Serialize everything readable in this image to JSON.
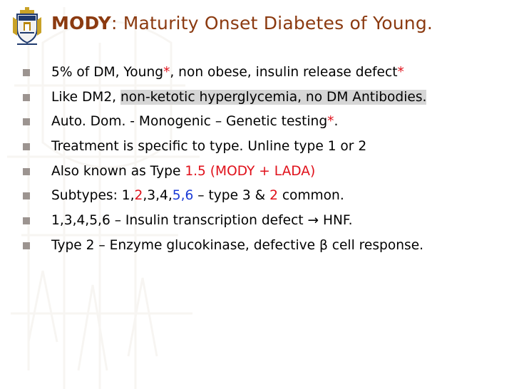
{
  "colors": {
    "title": "#8b3a10",
    "accent_red": "#e0101a",
    "accent_blue": "#1a3ad6",
    "bullet": "#9c9490",
    "highlight": "#d6d6d6"
  },
  "logo": {
    "icon": "university-crest-icon"
  },
  "title": {
    "bold": "MODY",
    "rest": ": Maturity Onset Diabetes of Young."
  },
  "bullets": [
    {
      "a": "5% of DM, Young",
      "b": "*",
      "c": ", non obese, insulin release defect",
      "d": "*"
    },
    {
      "a": "Like DM2, ",
      "b": "non-ketotic hyperglycemia, no DM Antibodies."
    },
    {
      "a": "Auto. Dom. - Monogenic – Genetic testing",
      "b": "*",
      "c": "."
    },
    {
      "a": "Treatment is specific to type. Unline type 1 or 2"
    },
    {
      "a": "Also known as Type ",
      "b": "1.5 (MODY + LADA)"
    },
    {
      "a": "Subtypes: 1,",
      "b": "2",
      "c": ",3,4,",
      "d": "5,6",
      "e": " – type 3 & ",
      "f": "2",
      "g": " common."
    },
    {
      "a": "1,3,4,5,6 – Insulin transcription defect ",
      "arrow": "→",
      "b": " HNF."
    },
    {
      "a": "Type 2 – Enzyme glucokinase, defective β cell response."
    }
  ]
}
